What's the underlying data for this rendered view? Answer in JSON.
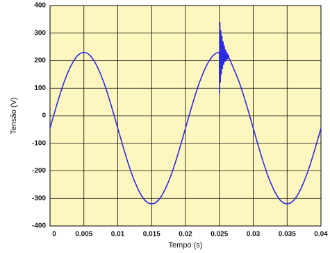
{
  "chart_data": {
    "type": "line",
    "xlabel": "Tempo (s)",
    "ylabel": "Tensão (V)",
    "x": [
      0,
      0.0005,
      0.001,
      0.0015,
      0.002,
      0.0025,
      0.003,
      0.0035,
      0.004,
      0.0045,
      0.005,
      0.0055,
      0.006,
      0.0065,
      0.007,
      0.0075,
      0.008,
      0.0085,
      0.009,
      0.0095,
      0.01,
      0.0105,
      0.011,
      0.0115,
      0.012,
      0.0125,
      0.013,
      0.0135,
      0.014,
      0.0145,
      0.015,
      0.0155,
      0.016,
      0.0165,
      0.017,
      0.0175,
      0.018,
      0.0185,
      0.019,
      0.0195,
      0.02,
      0.0205,
      0.021,
      0.0215,
      0.022,
      0.0225,
      0.023,
      0.0235,
      0.024,
      0.0245,
      0.025,
      0.02502,
      0.02508,
      0.02515,
      0.02522,
      0.0253,
      0.02538,
      0.02546,
      0.02555,
      0.02564,
      0.02573,
      0.02582,
      0.02592,
      0.02602,
      0.02612,
      0.02622,
      0.02632,
      0.02642,
      0.02655,
      0.0267,
      0.027,
      0.0275,
      0.028,
      0.0285,
      0.029,
      0.0295,
      0.03,
      0.0305,
      0.031,
      0.0315,
      0.032,
      0.0325,
      0.033,
      0.0335,
      0.034,
      0.0345,
      0.035,
      0.0355,
      0.036,
      0.0365,
      0.037,
      0.0375,
      0.038,
      0.0385,
      0.039,
      0.0395,
      0.04
    ],
    "values": [
      -45,
      -2,
      40,
      80,
      117,
      149,
      177,
      200,
      217,
      227,
      230,
      227,
      217,
      200,
      177,
      149,
      117,
      80,
      40,
      -2,
      -45,
      -88,
      -130,
      -170,
      -207,
      -239,
      -267,
      -290,
      -307,
      -317,
      -320,
      -317,
      -307,
      -290,
      -267,
      -239,
      -207,
      -170,
      -130,
      -88,
      -45,
      -2,
      40,
      80,
      117,
      149,
      177,
      200,
      217,
      227,
      230,
      80,
      340,
      120,
      310,
      150,
      290,
      170,
      270,
      185,
      255,
      195,
      240,
      200,
      230,
      205,
      222,
      208,
      205,
      195,
      177,
      149,
      117,
      80,
      40,
      -2,
      -45,
      -88,
      -130,
      -170,
      -207,
      -239,
      -267,
      -290,
      -307,
      -317,
      -320,
      -317,
      -307,
      -290,
      -267,
      -239,
      -207,
      -170,
      -130,
      -88,
      -45
    ],
    "color": "#2a2ae0",
    "xlim": [
      0,
      0.04
    ],
    "xticks": [
      0,
      0.005,
      0.01,
      0.015,
      0.02,
      0.025,
      0.03,
      0.035,
      0.04
    ],
    "ylim": [
      -400,
      400
    ],
    "yticks": [
      -400,
      -300,
      -200,
      -100,
      0,
      100,
      200,
      300,
      400
    ],
    "grid": true
  }
}
